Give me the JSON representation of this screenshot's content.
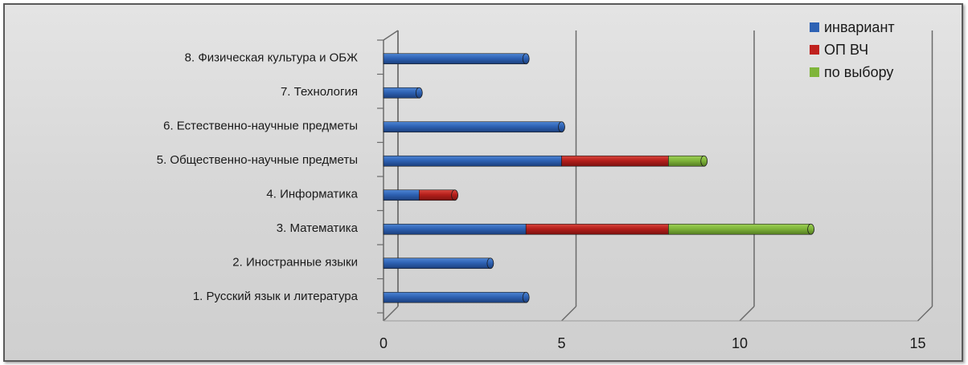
{
  "chart_data": {
    "type": "bar",
    "orientation": "horizontal",
    "stacked": true,
    "categories": [
      "1. Русский язык и литература",
      "2. Иностранные языки",
      "3. Математика",
      "4. Информатика",
      "5. Общественно-научные предметы",
      "6. Естественно-научные предметы",
      "7. Технология",
      "8. Физическая культура и ОБЖ"
    ],
    "series": [
      {
        "name": "инвариант",
        "color": "#2e62b4",
        "values": [
          4,
          3,
          4,
          1,
          5,
          5,
          1,
          4
        ]
      },
      {
        "name": "ОП ВЧ",
        "color": "#c0211e",
        "values": [
          0,
          0,
          4,
          1,
          3,
          0,
          0,
          0
        ]
      },
      {
        "name": "по выбору",
        "color": "#7fb53a",
        "values": [
          0,
          0,
          4,
          0,
          1,
          0,
          0,
          0
        ]
      }
    ],
    "xlim": [
      0,
      15
    ],
    "xticks": [
      "0",
      "5",
      "10",
      "15"
    ],
    "grid": true,
    "legend_position": "top-right"
  }
}
